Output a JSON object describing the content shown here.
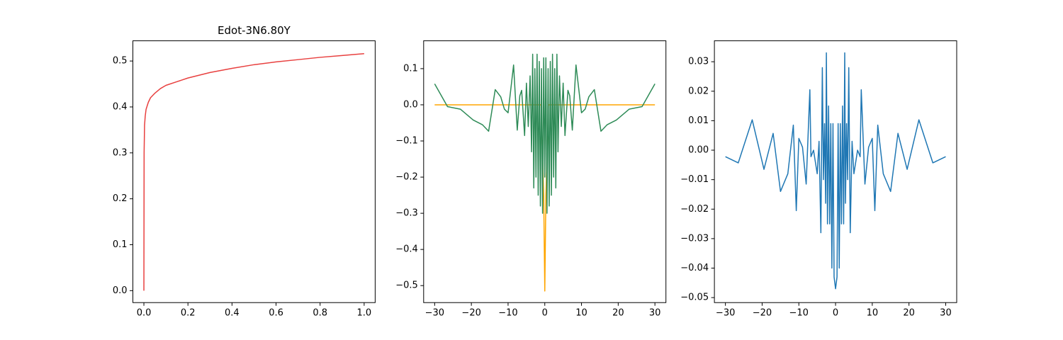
{
  "chart_data": [
    {
      "type": "line",
      "title": "Edot-3N6.80Y",
      "xlim": [
        -0.05,
        1.05
      ],
      "ylim": [
        -0.026,
        0.544
      ],
      "xticks": [
        {
          "value": 0,
          "label": "0.0"
        },
        0.2,
        0.4,
        0.6,
        0.8,
        {
          "value": 1,
          "label": "1.0"
        }
      ],
      "yticks": [
        {
          "value": 0,
          "label": "0.0"
        },
        0.1,
        0.2,
        0.3,
        0.4,
        0.5
      ],
      "series": [
        {
          "color": "#e8403f",
          "x": [
            0,
            0.001,
            0.003,
            0.006,
            0.01,
            0.02,
            0.03,
            0.05,
            0.075,
            0.1,
            0.15,
            0.2,
            0.3,
            0.4,
            0.5,
            0.6,
            0.7,
            0.8,
            0.9,
            1.0
          ],
          "values": [
            0,
            0.3,
            0.36,
            0.38,
            0.395,
            0.41,
            0.42,
            0.43,
            0.44,
            0.447,
            0.455,
            0.463,
            0.475,
            0.484,
            0.492,
            0.498,
            0.503,
            0.508,
            0.512,
            0.516
          ]
        }
      ]
    },
    {
      "type": "line",
      "xlim": [
        -33,
        33
      ],
      "ylim": [
        -0.547,
        0.177
      ],
      "xticks": [
        {
          "value": -30,
          "label": "−30"
        },
        {
          "value": -20,
          "label": "−20"
        },
        {
          "value": -10,
          "label": "−10"
        },
        0,
        10,
        20,
        30
      ],
      "yticks": [
        0.1,
        {
          "value": 0,
          "label": "0.0"
        },
        {
          "value": -0.1,
          "label": "−0.1"
        },
        {
          "value": -0.2,
          "label": "−0.2"
        },
        {
          "value": -0.3,
          "label": "−0.3"
        },
        {
          "value": -0.4,
          "label": "−0.4"
        },
        {
          "value": -0.5,
          "label": "−0.5"
        }
      ],
      "series": [
        {
          "color": "#ffa500",
          "x": [
            -30,
            -3,
            -1,
            -0.3,
            0,
            0.3,
            1,
            3,
            30
          ],
          "values": [
            0,
            0,
            0,
            -0.25,
            -0.515,
            -0.25,
            0,
            0,
            0
          ]
        },
        {
          "color": "#2e8b57",
          "x": [
            -30,
            -26.5,
            -23,
            -19.5,
            -17,
            -15.3,
            -13.5,
            -12,
            -11,
            -10,
            -8.5,
            -7.5,
            -6.8,
            -6.3,
            -5.5,
            -5,
            -4.5,
            -4,
            -3.6,
            -3.3,
            -3,
            -2.7,
            -2.4,
            -2.1,
            -1.8,
            -1.5,
            -1.2,
            -0.9,
            -0.6,
            -0.3,
            0,
            0.3,
            0.6,
            0.9,
            1.2,
            1.5,
            1.8,
            2.1,
            2.4,
            2.7,
            3,
            3.3,
            3.6,
            4,
            4.5,
            5,
            5.5,
            6.3,
            6.8,
            7.5,
            8.5,
            10,
            11,
            12,
            13.5,
            15.3,
            17,
            19.5,
            23,
            26.5,
            30
          ],
          "values": [
            0.058,
            -0.005,
            -0.012,
            -0.042,
            -0.055,
            -0.073,
            0.042,
            0.022,
            -0.012,
            -0.022,
            0.11,
            -0.07,
            0.025,
            0.04,
            -0.085,
            0.06,
            -0.06,
            0.08,
            -0.13,
            0.14,
            -0.23,
            0.1,
            -0.2,
            0.14,
            -0.25,
            0.12,
            -0.28,
            0.1,
            -0.3,
            0.13,
            -0.2,
            0.13,
            -0.3,
            0.1,
            -0.28,
            0.12,
            -0.25,
            0.14,
            -0.2,
            0.1,
            -0.23,
            0.14,
            -0.13,
            0.08,
            -0.06,
            0.06,
            -0.085,
            0.04,
            0.025,
            -0.07,
            0.11,
            -0.022,
            -0.012,
            0.022,
            0.042,
            -0.073,
            -0.055,
            -0.042,
            -0.012,
            -0.005,
            0.058
          ]
        }
      ]
    },
    {
      "type": "line",
      "xlim": [
        -33,
        33
      ],
      "ylim": [
        -0.0517,
        0.0371
      ],
      "xticks": [
        {
          "value": -30,
          "label": "−30"
        },
        {
          "value": -20,
          "label": "−20"
        },
        {
          "value": -10,
          "label": "−10"
        },
        0,
        10,
        20,
        30
      ],
      "yticks": [
        0.03,
        0.02,
        0.01,
        {
          "value": 0,
          "label": "0.00"
        },
        {
          "value": -0.01,
          "label": "−0.01"
        },
        {
          "value": -0.02,
          "label": "−0.02"
        },
        {
          "value": -0.03,
          "label": "−0.03"
        },
        {
          "value": -0.04,
          "label": "−0.04"
        },
        {
          "value": -0.05,
          "label": "−0.05"
        }
      ],
      "series": [
        {
          "color": "#1f77b4",
          "x": [
            -30,
            -26.5,
            -22.7,
            -19.5,
            -17,
            -15,
            -13,
            -11.5,
            -10.7,
            -10,
            -9,
            -8,
            -7,
            -6.7,
            -6,
            -5,
            -4.5,
            -4,
            -3.6,
            -3.3,
            -3,
            -2.7,
            -2.5,
            -2.2,
            -1.9,
            -1.6,
            -1.3,
            -1,
            -0.7,
            -0.4,
            0,
            0.4,
            0.7,
            1,
            1.3,
            1.6,
            1.9,
            2.2,
            2.5,
            2.7,
            3,
            3.3,
            3.6,
            4,
            4.5,
            5,
            6,
            6.7,
            7,
            8,
            9,
            10,
            10.7,
            11.5,
            13,
            15,
            17,
            19.5,
            22.7,
            26.5,
            30
          ],
          "values": [
            -0.0022,
            -0.0043,
            0.0103,
            -0.0065,
            0.0057,
            -0.014,
            -0.008,
            0.0085,
            -0.0205,
            0.004,
            0.001,
            -0.0115,
            0.0205,
            -0.0022,
            0.0,
            -0.008,
            0.003,
            -0.028,
            0.028,
            -0.01,
            0.009,
            -0.018,
            0.033,
            -0.025,
            0.015,
            -0.025,
            0.009,
            -0.04,
            0.009,
            -0.043,
            -0.047,
            -0.043,
            0.009,
            -0.04,
            0.009,
            -0.025,
            0.015,
            -0.025,
            0.033,
            -0.018,
            0.009,
            -0.01,
            0.028,
            -0.028,
            0.003,
            -0.008,
            0.0,
            -0.0022,
            0.0205,
            -0.0115,
            0.001,
            0.004,
            -0.0205,
            0.0085,
            -0.008,
            -0.014,
            0.0057,
            -0.0065,
            0.0103,
            -0.0043,
            -0.0022
          ]
        }
      ]
    }
  ]
}
